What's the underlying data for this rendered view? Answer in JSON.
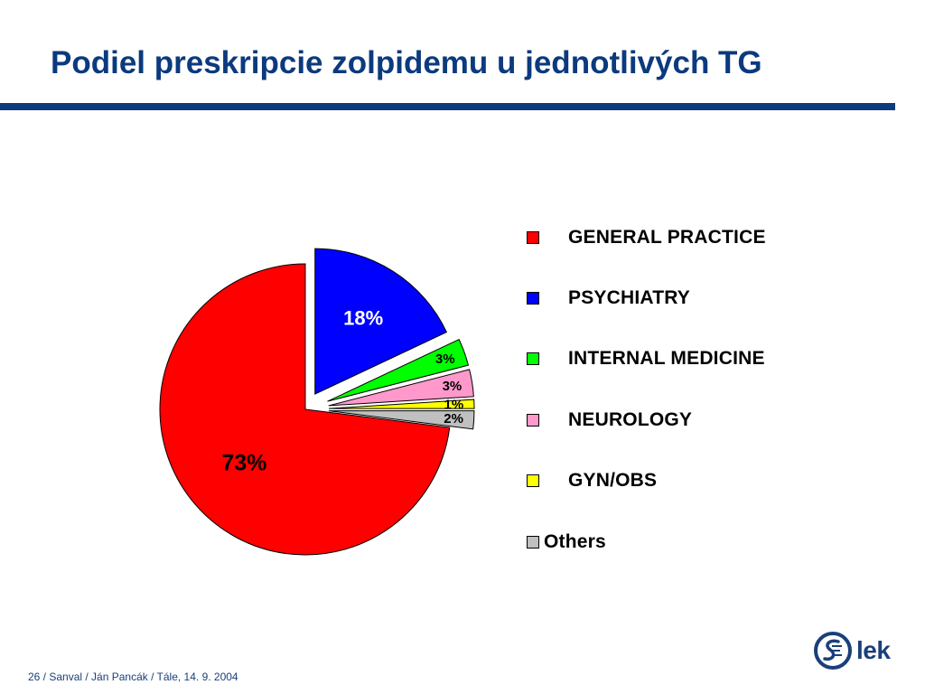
{
  "slide": {
    "title": "Podiel preskripcie zolpidemu u jednotlivých TG",
    "footer": "26 / Sanval / Ján Pancák / Tále, 14. 9. 2004",
    "logo_text": "lek"
  },
  "colors": {
    "title": "#0b3a7e",
    "rule": "#0b3a7e",
    "footer": "#1a3f7a"
  },
  "chart_data": {
    "type": "pie",
    "title": "",
    "exploded": true,
    "start_angle_deg": 0,
    "direction": "clockwise",
    "legend_position": "right",
    "slices": [
      {
        "name": "PSYCHIATRY",
        "value": 18,
        "label": "18%",
        "color": "#0000ff"
      },
      {
        "name": "INTERNAL MEDICINE",
        "value": 3,
        "label": "3%",
        "color": "#00ff00"
      },
      {
        "name": "NEUROLOGY",
        "value": 3,
        "label": "3%",
        "color": "#ff99cc"
      },
      {
        "name": "GYN/OBS",
        "value": 1,
        "label": "1%",
        "color": "#ffff00"
      },
      {
        "name": "Others",
        "value": 2,
        "label": "2%",
        "color": "#c0c0c0"
      },
      {
        "name": "GENERAL PRACTICE",
        "value": 73,
        "label": "73%",
        "color": "#ff0000"
      }
    ],
    "legend": [
      {
        "name": "GENERAL PRACTICE",
        "color": "#ff0000"
      },
      {
        "name": "PSYCHIATRY",
        "color": "#0000ff"
      },
      {
        "name": "INTERNAL MEDICINE",
        "color": "#00ff00"
      },
      {
        "name": "NEUROLOGY",
        "color": "#ff99cc"
      },
      {
        "name": "GYN/OBS",
        "color": "#ffff00"
      },
      {
        "name": "Others",
        "color": "#c0c0c0"
      }
    ]
  }
}
